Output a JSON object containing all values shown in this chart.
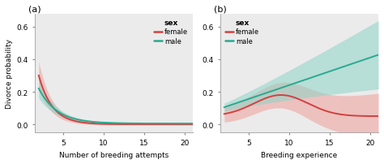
{
  "panel_a": {
    "title": "(a)",
    "xlabel": "Number of breeding attempts",
    "ylabel": "Divorce probability",
    "xlim": [
      1.5,
      21
    ],
    "ylim": [
      -0.05,
      0.68
    ],
    "yticks": [
      0.0,
      0.2,
      0.4,
      0.6
    ],
    "xticks": [
      5,
      10,
      15,
      20
    ],
    "female_color": "#f0a09a",
    "male_color": "#8dd4c8",
    "female_line": "#d44040",
    "male_line": "#2aaa90"
  },
  "panel_b": {
    "title": "(b)",
    "xlabel": "Breeding experience",
    "ylabel": "",
    "xlim": [
      1.5,
      21
    ],
    "ylim": [
      -0.05,
      0.68
    ],
    "yticks": [
      0.0,
      0.2,
      0.4,
      0.6
    ],
    "xticks": [
      5,
      10,
      15,
      20
    ],
    "female_color": "#f0a09a",
    "male_color": "#8dd4c8",
    "female_line": "#d44040",
    "male_line": "#2aaa90"
  },
  "legend_title": "sex",
  "legend_female": "female",
  "legend_male": "male",
  "panel_bg": "#ebebeb",
  "fig_bg": "#ffffff"
}
